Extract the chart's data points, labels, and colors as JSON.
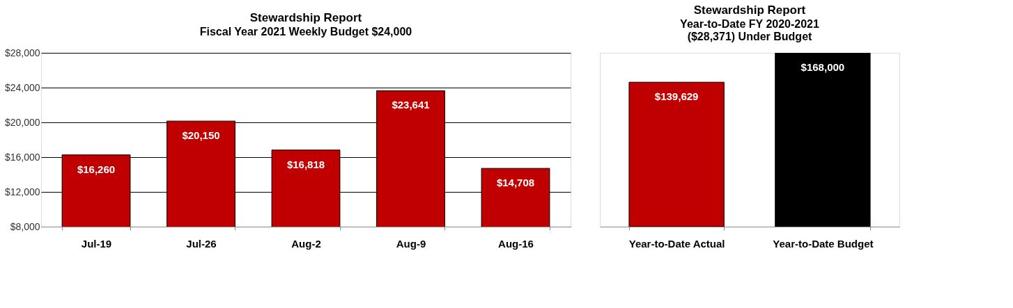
{
  "chart_data": [
    {
      "type": "bar",
      "title": "Stewardship Report",
      "subtitle": "Fiscal Year 2021 Weekly Budget $24,000",
      "categories": [
        "Jul-19",
        "Jul-26",
        "Aug-2",
        "Aug-9",
        "Aug-16"
      ],
      "values": [
        16260,
        20150,
        16818,
        23641,
        14708
      ],
      "color": "#c00000",
      "ylim": [
        8000,
        28000
      ],
      "yticks": [
        {
          "value": 8000,
          "label": "$8,000"
        },
        {
          "value": 12000,
          "label": "$12,000"
        },
        {
          "value": 16000,
          "label": "$16,000"
        },
        {
          "value": 20000,
          "label": "$20,000"
        },
        {
          "value": 24000,
          "label": "$24,000"
        },
        {
          "value": 28000,
          "label": "$28,000"
        }
      ],
      "grid": "y",
      "value_labels": [
        "$16,260",
        "$20,150",
        "$16,818",
        "$23,641",
        "$14,708"
      ]
    },
    {
      "type": "bar",
      "title": "Stewardship Report",
      "subtitle": "Year-to-Date  FY 2020-2021",
      "annotations": [
        "($28,371) Under Budget"
      ],
      "categories": [
        "Year-to-Date Actual",
        "Year-to-Date Budget"
      ],
      "values": [
        139629,
        168000
      ],
      "colors": [
        "#c00000",
        "#000000"
      ],
      "value_labels": [
        "$139,629",
        "$168,000"
      ],
      "tick_labels": "x"
    }
  ]
}
